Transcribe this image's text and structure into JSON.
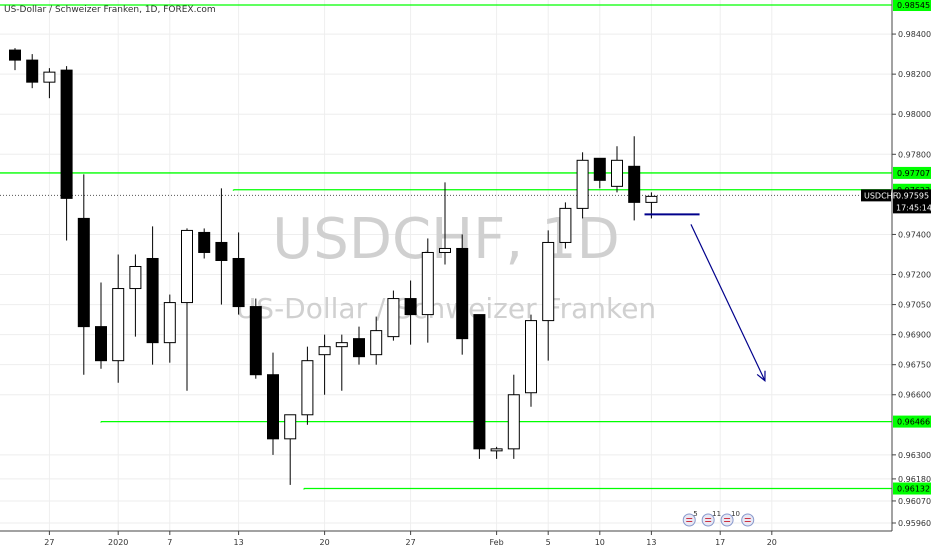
{
  "chart_data": {
    "type": "candlestick",
    "legend_title": "US-Dollar / Schweizer Franken, 1D, FOREX.com",
    "watermark": {
      "symbol": "USDCHF, 1D",
      "name": "US-Dollar / Schweizer Franken"
    },
    "ylim": [
      0.9592,
      0.9857
    ],
    "y_ticks": [
      0.984,
      0.982,
      0.98,
      0.978,
      0.974,
      0.972,
      0.9705,
      0.969,
      0.9675,
      0.966,
      0.963,
      0.9618,
      0.9607,
      0.9596
    ],
    "y_tick_labels": [
      "0.98400",
      "0.98200",
      "0.98000",
      "0.97800",
      "0.97400",
      "0.97200",
      "0.97050",
      "0.96900",
      "0.96750",
      "0.96600",
      "0.96300",
      "0.96180",
      "0.96070",
      "0.95960"
    ],
    "x_tick_labels": [
      {
        "label": "27",
        "bar": 2
      },
      {
        "label": "2020",
        "bar": 6
      },
      {
        "label": "7",
        "bar": 9
      },
      {
        "label": "13",
        "bar": 13
      },
      {
        "label": "20",
        "bar": 18
      },
      {
        "label": "27",
        "bar": 23
      },
      {
        "label": "Feb",
        "bar": 28
      },
      {
        "label": "5",
        "bar": 31
      },
      {
        "label": "10",
        "bar": 34
      },
      {
        "label": "13",
        "bar": 37
      },
      {
        "label": "17",
        "bar": 41
      },
      {
        "label": "20",
        "bar": 44
      }
    ],
    "candles": [
      {
        "o": 0.9832,
        "h": 0.9833,
        "l": 0.9822,
        "c": 0.9827
      },
      {
        "o": 0.9827,
        "h": 0.983,
        "l": 0.9813,
        "c": 0.9816
      },
      {
        "o": 0.9816,
        "h": 0.9823,
        "l": 0.9808,
        "c": 0.9821
      },
      {
        "o": 0.9822,
        "h": 0.9824,
        "l": 0.9737,
        "c": 0.9758
      },
      {
        "o": 0.9748,
        "h": 0.977,
        "l": 0.967,
        "c": 0.9694
      },
      {
        "o": 0.9694,
        "h": 0.9716,
        "l": 0.9673,
        "c": 0.9677
      },
      {
        "o": 0.9677,
        "h": 0.973,
        "l": 0.9666,
        "c": 0.9713
      },
      {
        "o": 0.9713,
        "h": 0.973,
        "l": 0.9689,
        "c": 0.9724
      },
      {
        "o": 0.9728,
        "h": 0.9744,
        "l": 0.9675,
        "c": 0.9686
      },
      {
        "o": 0.9686,
        "h": 0.971,
        "l": 0.9676,
        "c": 0.9706
      },
      {
        "o": 0.9706,
        "h": 0.9743,
        "l": 0.9662,
        "c": 0.9742
      },
      {
        "o": 0.9741,
        "h": 0.9743,
        "l": 0.9728,
        "c": 0.9731
      },
      {
        "o": 0.9736,
        "h": 0.9763,
        "l": 0.9705,
        "c": 0.9727
      },
      {
        "o": 0.9728,
        "h": 0.9741,
        "l": 0.97,
        "c": 0.9704
      },
      {
        "o": 0.9704,
        "h": 0.9708,
        "l": 0.9668,
        "c": 0.967
      },
      {
        "o": 0.967,
        "h": 0.9681,
        "l": 0.963,
        "c": 0.9638
      },
      {
        "o": 0.9638,
        "h": 0.965,
        "l": 0.9615,
        "c": 0.965
      },
      {
        "o": 0.965,
        "h": 0.9684,
        "l": 0.9645,
        "c": 0.9677
      },
      {
        "o": 0.968,
        "h": 0.969,
        "l": 0.966,
        "c": 0.9684
      },
      {
        "o": 0.9684,
        "h": 0.969,
        "l": 0.9662,
        "c": 0.9686
      },
      {
        "o": 0.9688,
        "h": 0.9694,
        "l": 0.9675,
        "c": 0.9679
      },
      {
        "o": 0.968,
        "h": 0.9699,
        "l": 0.9675,
        "c": 0.9692
      },
      {
        "o": 0.9689,
        "h": 0.9712,
        "l": 0.9687,
        "c": 0.9708
      },
      {
        "o": 0.9708,
        "h": 0.9717,
        "l": 0.9685,
        "c": 0.97
      },
      {
        "o": 0.97,
        "h": 0.9738,
        "l": 0.9686,
        "c": 0.9731
      },
      {
        "o": 0.9731,
        "h": 0.9766,
        "l": 0.9725,
        "c": 0.9733
      },
      {
        "o": 0.9733,
        "h": 0.974,
        "l": 0.968,
        "c": 0.9688
      },
      {
        "o": 0.97,
        "h": 0.97,
        "l": 0.9628,
        "c": 0.9633
      },
      {
        "o": 0.9632,
        "h": 0.9634,
        "l": 0.9628,
        "c": 0.9633
      },
      {
        "o": 0.9633,
        "h": 0.967,
        "l": 0.9628,
        "c": 0.966
      },
      {
        "o": 0.9661,
        "h": 0.97,
        "l": 0.9654,
        "c": 0.9697
      },
      {
        "o": 0.9697,
        "h": 0.9742,
        "l": 0.9677,
        "c": 0.9736
      },
      {
        "o": 0.9736,
        "h": 0.9756,
        "l": 0.9733,
        "c": 0.9753
      },
      {
        "o": 0.9753,
        "h": 0.9781,
        "l": 0.9748,
        "c": 0.9777
      },
      {
        "o": 0.9778,
        "h": 0.9778,
        "l": 0.9763,
        "c": 0.9767
      },
      {
        "o": 0.9764,
        "h": 0.9784,
        "l": 0.9761,
        "c": 0.9777
      },
      {
        "o": 0.9774,
        "h": 0.9789,
        "l": 0.9747,
        "c": 0.9756
      },
      {
        "o": 0.9756,
        "h": 0.9761,
        "l": 0.9748,
        "c": 0.9759
      }
    ],
    "horizontal_levels": [
      {
        "value": 0.98545,
        "label": "0.98545",
        "start_bar": -1
      },
      {
        "value": 0.97707,
        "label": "0.97707",
        "start_bar": -1
      },
      {
        "value": 0.97623,
        "label": "0.97623",
        "start_bar": 12.7
      },
      {
        "value": 0.96466,
        "label": "0.96466",
        "start_bar": 5
      },
      {
        "value": 0.96132,
        "label": "0.96132",
        "start_bar": 16.8
      }
    ],
    "current_price": {
      "value": 0.97595,
      "label": "USDCHF",
      "price_label": "0.97595",
      "countdown": "17:45:14"
    },
    "annotations": {
      "support_segment": {
        "value": 0.975,
        "start_bar": 36.6,
        "end_bar": 39.8
      },
      "arrow": {
        "from": {
          "bar": 39.3,
          "value": 0.9745
        },
        "to": {
          "bar": 43.6,
          "value": 0.9667
        }
      }
    },
    "event_icons": [
      {
        "label": "5",
        "bar": 39.2
      },
      {
        "label": "11",
        "bar": 40.3
      },
      {
        "label": "10",
        "bar": 41.4
      },
      {
        "label": "",
        "bar": 42.6
      }
    ],
    "colors": {
      "up_body": "#ffffff",
      "down_body": "#000000",
      "wick": "#000000",
      "level": "#00ff00",
      "annotation": "#00008b",
      "watermark": "#d0d0d0",
      "axis_text": "#333333",
      "grid": "#eeeeee",
      "price_tag": "#000000"
    }
  }
}
